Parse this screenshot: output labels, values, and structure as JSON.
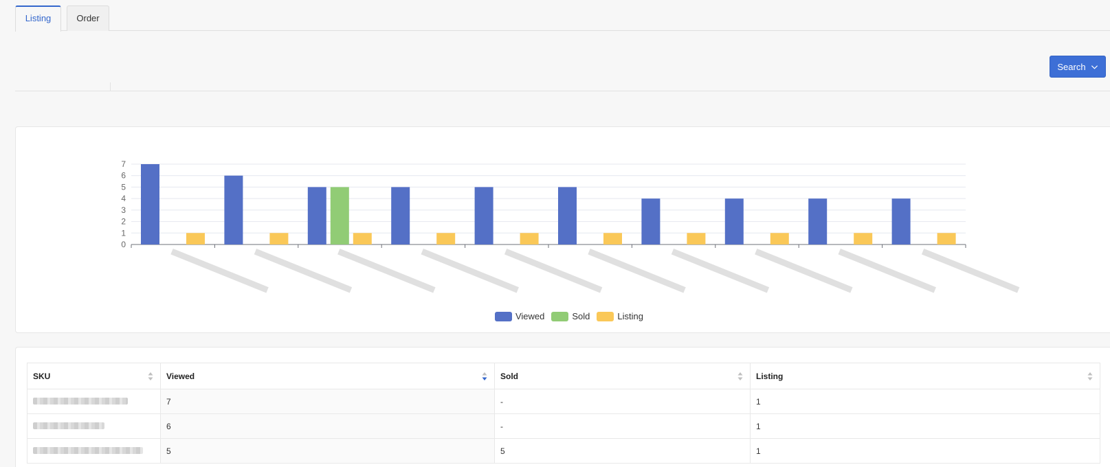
{
  "tabs": [
    {
      "label": "Listing",
      "active": true
    },
    {
      "label": "Order",
      "active": false
    }
  ],
  "search_button": {
    "label": "Search",
    "icon": "chevron-down-icon"
  },
  "chart_data": {
    "type": "bar",
    "categories": [
      "",
      "",
      "",
      "",
      "",
      "",
      "",
      "",
      "",
      ""
    ],
    "series": [
      {
        "name": "Viewed",
        "values": [
          7,
          6,
          5,
          5,
          5,
          5,
          4,
          4,
          4,
          4
        ],
        "color": "#5470c6"
      },
      {
        "name": "Sold",
        "values": [
          0,
          0,
          5,
          0,
          0,
          0,
          0,
          0,
          0,
          0
        ],
        "color": "#91cc75"
      },
      {
        "name": "Listing",
        "values": [
          1,
          1,
          1,
          1,
          1,
          1,
          1,
          1,
          1,
          1
        ],
        "color": "#fac858"
      }
    ],
    "ylim": [
      0,
      7
    ],
    "yticks": [
      0,
      1,
      2,
      3,
      4,
      5,
      6,
      7
    ],
    "grid": true,
    "legend": "bottom-center"
  },
  "table": {
    "columns": [
      {
        "label": "SKU",
        "sort": "none"
      },
      {
        "label": "Viewed",
        "sort": "desc"
      },
      {
        "label": "Sold",
        "sort": "none"
      },
      {
        "label": "Listing",
        "sort": "none"
      }
    ],
    "rows": [
      {
        "sku": "",
        "viewed": "7",
        "sold": "-",
        "listing": "1"
      },
      {
        "sku": "",
        "viewed": "6",
        "sold": "-",
        "listing": "1"
      },
      {
        "sku": "",
        "viewed": "5",
        "sold": "5",
        "listing": "1"
      }
    ]
  },
  "colors": {
    "accent": "#3d6fd6",
    "viewed": "#5470c6",
    "sold": "#91cc75",
    "listing": "#fac858"
  }
}
